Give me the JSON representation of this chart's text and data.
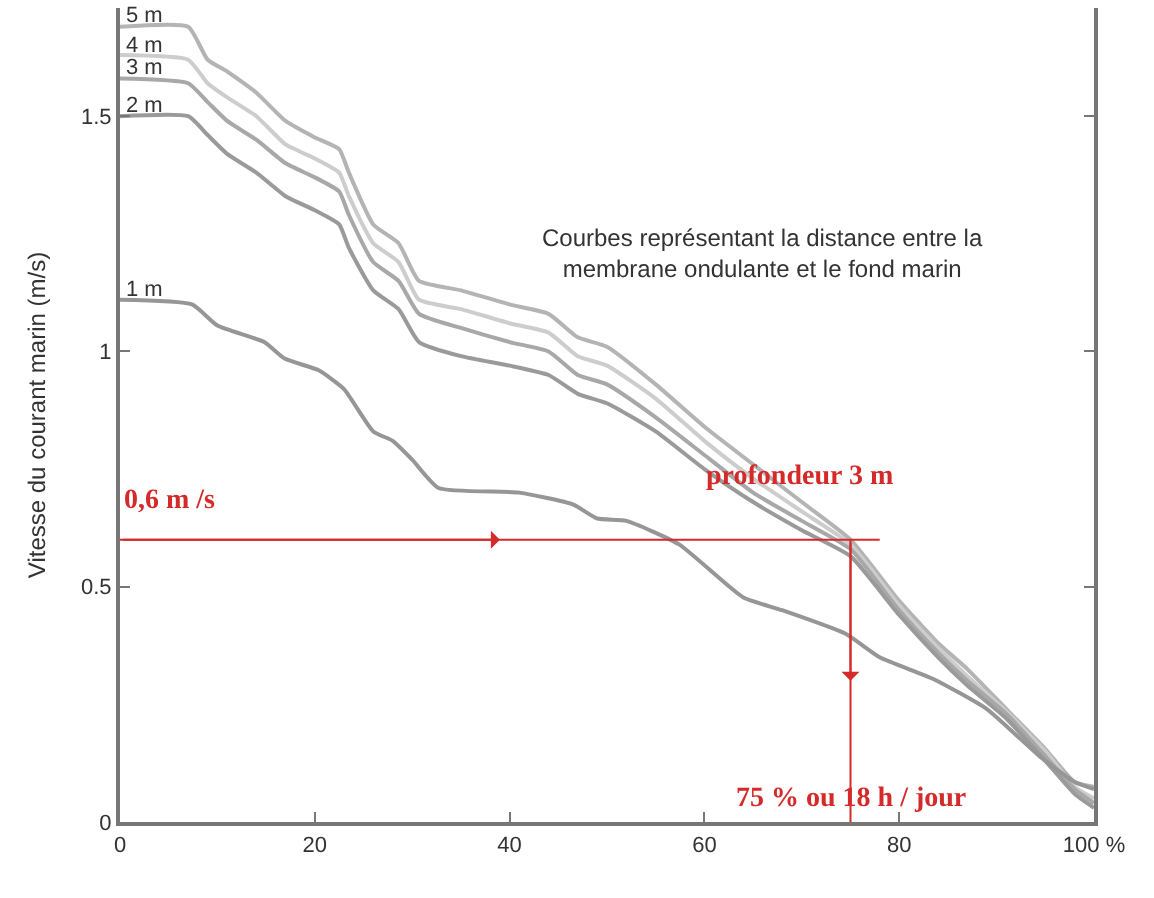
{
  "chart_data": {
    "type": "line",
    "ylabel": "Vitesse du courant marin (m/s)",
    "x": [
      0,
      7,
      9,
      11,
      14,
      17,
      20,
      22.5,
      23.5,
      26,
      28.6,
      30.7,
      35,
      40,
      44,
      47,
      50,
      55,
      60,
      65,
      70,
      75,
      80,
      84,
      87,
      91,
      95,
      98,
      100
    ],
    "series": [
      {
        "name": "5 m",
        "color": "#b4b4b4",
        "values": [
          1.69,
          1.69,
          1.62,
          1.595,
          1.55,
          1.49,
          1.455,
          1.43,
          1.38,
          1.27,
          1.23,
          1.15,
          1.13,
          1.1,
          1.08,
          1.03,
          1.01,
          0.93,
          0.84,
          0.76,
          0.68,
          0.6,
          0.47,
          0.38,
          0.325,
          0.24,
          0.155,
          0.085,
          0.075
        ]
      },
      {
        "name": "4 m",
        "color": "#cdcdcd",
        "values": [
          1.63,
          1.62,
          1.57,
          1.54,
          1.5,
          1.44,
          1.41,
          1.38,
          1.33,
          1.23,
          1.19,
          1.11,
          1.09,
          1.06,
          1.04,
          0.99,
          0.97,
          0.9,
          0.81,
          0.73,
          0.66,
          0.59,
          0.46,
          0.37,
          0.31,
          0.235,
          0.15,
          0.075,
          0.05
        ]
      },
      {
        "name": "3 m",
        "color": "#a8a8a8",
        "values": [
          1.58,
          1.57,
          1.53,
          1.49,
          1.45,
          1.4,
          1.37,
          1.34,
          1.29,
          1.19,
          1.15,
          1.08,
          1.05,
          1.02,
          1.0,
          0.95,
          0.93,
          0.86,
          0.78,
          0.7,
          0.64,
          0.58,
          0.45,
          0.36,
          0.3,
          0.23,
          0.14,
          0.07,
          0.04
        ]
      },
      {
        "name": "2 m",
        "color": "#9a9a9a",
        "values": [
          1.5,
          1.5,
          1.46,
          1.42,
          1.38,
          1.33,
          1.3,
          1.27,
          1.22,
          1.13,
          1.09,
          1.02,
          0.99,
          0.97,
          0.95,
          0.91,
          0.89,
          0.83,
          0.75,
          0.68,
          0.62,
          0.565,
          0.44,
          0.35,
          0.29,
          0.22,
          0.13,
          0.06,
          0.03
        ]
      },
      {
        "name": "1 m",
        "color": "#969696",
        "x": [
          0,
          7.4,
          10,
          14.8,
          16.9,
          20.4,
          23,
          26,
          28,
          30,
          32.7,
          41,
          46.5,
          49,
          52,
          57.4,
          64,
          68,
          74.5,
          78,
          83.5,
          89,
          94.4,
          98,
          100
        ],
        "values": [
          1.11,
          1.1,
          1.055,
          1.02,
          0.985,
          0.96,
          0.92,
          0.83,
          0.81,
          0.77,
          0.71,
          0.7,
          0.675,
          0.645,
          0.64,
          0.59,
          0.477,
          0.45,
          0.4,
          0.35,
          0.304,
          0.24,
          0.14,
          0.085,
          0.07
        ]
      }
    ],
    "xlim": [
      0,
      100
    ],
    "ylim": [
      0,
      1.73
    ],
    "xticks": [
      0,
      20,
      40,
      60,
      80,
      {
        "value": 100,
        "label": "100 %"
      }
    ],
    "yticks": [
      0,
      0.5,
      1,
      1.5
    ],
    "ref_lines": [
      {
        "axis": "y",
        "value": 0.6,
        "label": "0,6 m /s",
        "color": "#d42a2a"
      },
      {
        "axis": "x",
        "value": 75,
        "label": "75 % ou 18 h / jour",
        "color": "#d42a2a"
      }
    ],
    "annotations": [
      "Courbes représentant la distance entre la membrane ondulante et le fond marin",
      {
        "text": "profondeur 3 m",
        "x": 75,
        "y": 0.6
      }
    ],
    "legend": false
  }
}
